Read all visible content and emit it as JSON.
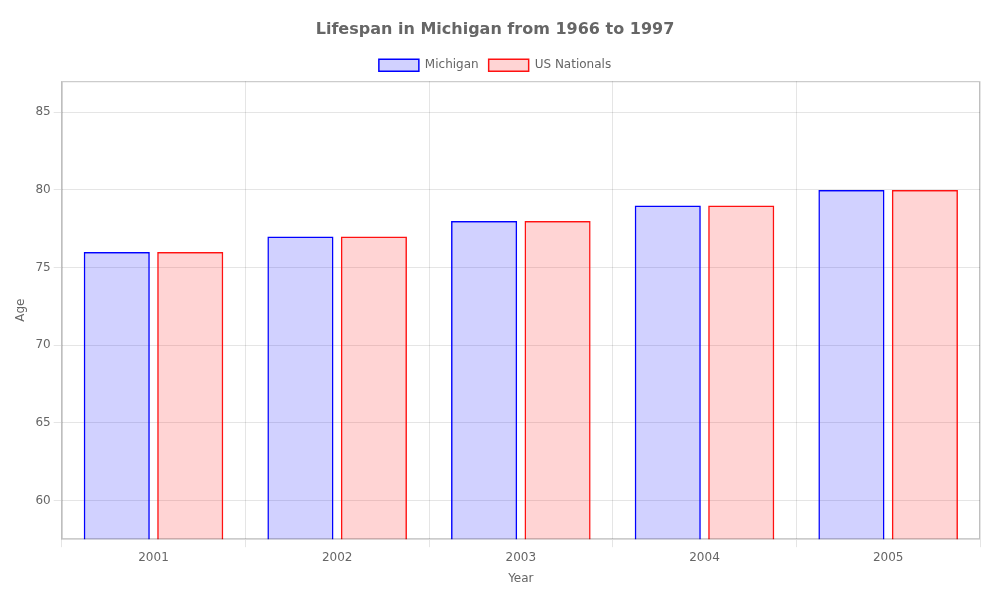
{
  "chart_data": {
    "type": "bar",
    "title": "Lifespan in Michigan from 1966 to 1997",
    "xlabel": "Year",
    "ylabel": "Age",
    "categories": [
      "2001",
      "2002",
      "2003",
      "2004",
      "2005"
    ],
    "series": [
      {
        "name": "Michigan",
        "color": "#0000ff",
        "values": [
          76,
          77,
          78,
          79,
          80
        ]
      },
      {
        "name": "US Nationals",
        "color": "#ff1111",
        "values": [
          76,
          77,
          78,
          79,
          80
        ]
      }
    ],
    "ylim": [
      57.5,
      87
    ],
    "yticks": [
      60,
      65,
      70,
      75,
      80,
      85
    ],
    "grid": true,
    "legend": "top"
  }
}
